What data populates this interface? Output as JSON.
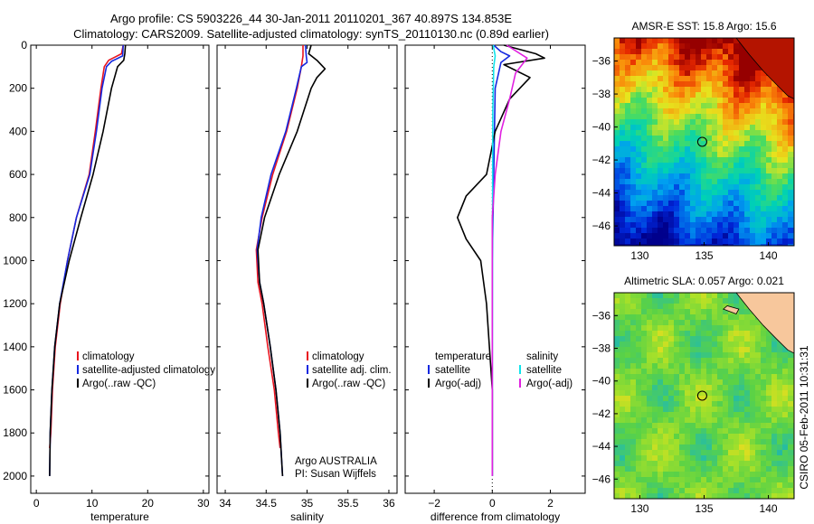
{
  "header": {
    "line1": "Argo profile: CS 5903226_44 30-Jan-2011 20110201_367 40.897S 134.853E",
    "line2": "Climatology: CARS2009. Satellite-adjusted climatology: synTS_20110130.nc (0.89d earlier)"
  },
  "side_label": "CSIRO 05-Feb-2011 10:31:31",
  "colors": {
    "red": "#e8141e",
    "blue": "#1428e0",
    "black": "#000000",
    "cyan": "#10e4ec",
    "magenta": "#e020e0",
    "land": "#f7c79c"
  },
  "chart_data": [
    {
      "type": "line",
      "id": "temperature",
      "xlabel": "temperature",
      "xlim": [
        -1,
        31
      ],
      "ylim": [
        0,
        2080
      ],
      "xticks": [
        0,
        10,
        20,
        30
      ],
      "yticks": [
        0,
        200,
        400,
        600,
        800,
        1000,
        1200,
        1400,
        1600,
        1800,
        2000
      ],
      "legend": [
        "climatology",
        "satellite-adjusted climatology",
        "Argo(..raw -QC)"
      ],
      "legend_position": "lower-left",
      "series": [
        {
          "name": "climatology",
          "color": "red",
          "points": [
            [
              15.6,
              0
            ],
            [
              15.3,
              40
            ],
            [
              13,
              70
            ],
            [
              12.2,
              100
            ],
            [
              11.6,
              200
            ],
            [
              10.6,
              400
            ],
            [
              9.5,
              600
            ],
            [
              7.2,
              800
            ],
            [
              5.6,
              1000
            ],
            [
              4.3,
              1200
            ],
            [
              3.4,
              1400
            ],
            [
              2.9,
              1600
            ],
            [
              2.6,
              1800
            ],
            [
              2.4,
              1870
            ]
          ]
        },
        {
          "name": "satellite-adjusted climatology",
          "color": "blue",
          "points": [
            [
              15.6,
              0
            ],
            [
              15.5,
              50
            ],
            [
              13.5,
              75
            ],
            [
              12.6,
              100
            ],
            [
              11.8,
              200
            ],
            [
              10.8,
              400
            ],
            [
              9.6,
              600
            ],
            [
              7.2,
              800
            ],
            [
              5.6,
              1000
            ],
            [
              4.2,
              1200
            ],
            [
              3.3,
              1400
            ],
            [
              2.8,
              1600
            ],
            [
              2.5,
              1800
            ],
            [
              2.4,
              2000
            ]
          ]
        },
        {
          "name": "Argo(..raw -QC)",
          "color": "black",
          "points": [
            [
              16,
              0
            ],
            [
              15.9,
              40
            ],
            [
              15.7,
              70
            ],
            [
              14.6,
              100
            ],
            [
              13.5,
              200
            ],
            [
              12,
              400
            ],
            [
              10.2,
              600
            ],
            [
              8,
              800
            ],
            [
              5.9,
              1000
            ],
            [
              4.2,
              1200
            ],
            [
              3.3,
              1400
            ],
            [
              2.8,
              1600
            ],
            [
              2.5,
              1800
            ],
            [
              2.4,
              2000
            ]
          ]
        }
      ]
    },
    {
      "type": "line",
      "id": "salinity",
      "xlabel": "salinity",
      "xlim": [
        33.9,
        36.1
      ],
      "ylim": [
        0,
        2080
      ],
      "xticks": [
        34,
        34.5,
        35,
        35.5,
        36
      ],
      "yticks": [
        0,
        200,
        400,
        600,
        800,
        1000,
        1200,
        1400,
        1600,
        1800,
        2000
      ],
      "legend": [
        "climatology",
        "satellite adj. clim.",
        "Argo(..raw -QC)"
      ],
      "legend_position": "lower-right",
      "annotation": [
        "Argo AUSTRALIA",
        "PI: Susan Wijffels"
      ],
      "series": [
        {
          "name": "climatology",
          "color": "red",
          "points": [
            [
              34.95,
              0
            ],
            [
              34.95,
              50
            ],
            [
              34.93,
              100
            ],
            [
              34.88,
              200
            ],
            [
              34.75,
              400
            ],
            [
              34.58,
              600
            ],
            [
              34.45,
              800
            ],
            [
              34.38,
              950
            ],
            [
              34.4,
              1100
            ],
            [
              34.45,
              1200
            ],
            [
              34.52,
              1400
            ],
            [
              34.6,
              1600
            ],
            [
              34.65,
              1800
            ],
            [
              34.67,
              1870
            ]
          ]
        },
        {
          "name": "satellite adj. clim.",
          "color": "blue",
          "points": [
            [
              34.98,
              0
            ],
            [
              34.99,
              50
            ],
            [
              35.0,
              80
            ],
            [
              34.93,
              100
            ],
            [
              34.87,
              200
            ],
            [
              34.74,
              400
            ],
            [
              34.56,
              600
            ],
            [
              34.44,
              800
            ],
            [
              34.39,
              950
            ],
            [
              34.42,
              1100
            ],
            [
              34.47,
              1200
            ],
            [
              34.55,
              1400
            ],
            [
              34.62,
              1600
            ],
            [
              34.67,
              1800
            ],
            [
              34.7,
              2000
            ]
          ]
        },
        {
          "name": "Argo(..raw -QC)",
          "color": "black",
          "points": [
            [
              35.05,
              0
            ],
            [
              35.02,
              40
            ],
            [
              35.12,
              70
            ],
            [
              35.22,
              110
            ],
            [
              35.12,
              150
            ],
            [
              35.05,
              200
            ],
            [
              34.88,
              400
            ],
            [
              34.66,
              600
            ],
            [
              34.48,
              800
            ],
            [
              34.4,
              950
            ],
            [
              34.42,
              1100
            ],
            [
              34.47,
              1200
            ],
            [
              34.55,
              1400
            ],
            [
              34.62,
              1600
            ],
            [
              34.67,
              1800
            ],
            [
              34.7,
              2000
            ]
          ]
        }
      ]
    },
    {
      "type": "line",
      "id": "difference",
      "xlabel": "difference from climatology",
      "xlim": [
        -3,
        3.2
      ],
      "ylim": [
        0,
        2080
      ],
      "xticks": [
        -2,
        0,
        2
      ],
      "yticks": [
        0,
        200,
        400,
        600,
        800,
        1000,
        1200,
        1400,
        1600,
        1800,
        2000
      ],
      "legend_left_title": "temperature",
      "legend_left": [
        "satellite",
        "Argo(-adj)"
      ],
      "legend_right_title": "salinity",
      "legend_right": [
        "satellite",
        "Argo(-adj)"
      ],
      "legend_position": "lower",
      "series": [
        {
          "name": "temperature satellite",
          "color": "blue",
          "points": [
            [
              0.05,
              0
            ],
            [
              0.3,
              30
            ],
            [
              0.6,
              50
            ],
            [
              0.3,
              80
            ],
            [
              0.1,
              200
            ],
            [
              0.05,
              600
            ],
            [
              0,
              1000
            ],
            [
              0,
              1500
            ],
            [
              0,
              2000
            ]
          ]
        },
        {
          "name": "temperature Argo(-adj)",
          "color": "black",
          "points": [
            [
              0.4,
              0
            ],
            [
              1.5,
              40
            ],
            [
              1.8,
              60
            ],
            [
              0.4,
              90
            ],
            [
              1.3,
              150
            ],
            [
              0.6,
              250
            ],
            [
              0.1,
              400
            ],
            [
              -0.2,
              600
            ],
            [
              -0.9,
              700
            ],
            [
              -1.2,
              800
            ],
            [
              -0.9,
              900
            ],
            [
              -0.4,
              1000
            ],
            [
              -0.2,
              1200
            ],
            [
              -0.1,
              1400
            ],
            [
              0,
              1600
            ],
            [
              0,
              1800
            ],
            [
              0,
              2000
            ]
          ]
        },
        {
          "name": "salinity satellite",
          "color": "cyan",
          "points": [
            [
              0.03,
              0
            ],
            [
              0.1,
              50
            ],
            [
              0.05,
              100
            ],
            [
              0.02,
              300
            ],
            [
              0.01,
              800
            ],
            [
              0,
              1500
            ],
            [
              0,
              2000
            ]
          ]
        },
        {
          "name": "salinity Argo(-adj)",
          "color": "magenta",
          "points": [
            [
              0.5,
              0
            ],
            [
              1.2,
              60
            ],
            [
              0.8,
              130
            ],
            [
              0.6,
              250
            ],
            [
              0.3,
              400
            ],
            [
              0.1,
              600
            ],
            [
              0,
              800
            ],
            [
              0,
              1100
            ],
            [
              0,
              1400
            ],
            [
              0,
              1700
            ],
            [
              0,
              2000
            ]
          ]
        }
      ]
    },
    {
      "type": "heatmap",
      "id": "sst_map",
      "title": "AMSR-E SST: 15.8 Argo: 15.6",
      "xlim": [
        128,
        142
      ],
      "ylim": [
        -47.2,
        -34.6
      ],
      "xticks": [
        130,
        135,
        140
      ],
      "yticks": [
        -36,
        -38,
        -40,
        -42,
        -44,
        -46
      ],
      "marker": {
        "lon": 134.853,
        "lat": -40.897
      }
    },
    {
      "type": "heatmap",
      "id": "sla_map",
      "title": "Altimetric SLA: 0.057 Argo: 0.021",
      "xlim": [
        128,
        142
      ],
      "ylim": [
        -47.2,
        -34.6
      ],
      "xticks": [
        130,
        135,
        140
      ],
      "yticks": [
        -36,
        -38,
        -40,
        -42,
        -44,
        -46
      ],
      "marker": {
        "lon": 134.853,
        "lat": -40.897
      }
    }
  ]
}
